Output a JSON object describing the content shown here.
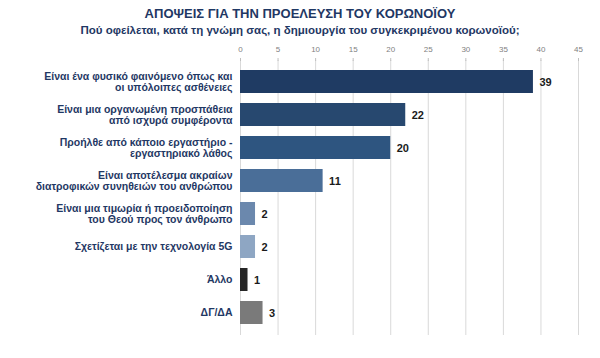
{
  "chart_data": {
    "type": "bar",
    "title": "ΑΠΟΨΕΙΣ ΓΙΑ ΤΗΝ ΠΡΟΕΛΕΥΣΗ ΤΟΥ ΚΟΡΩΝΟΪΟΥ",
    "subtitle": "Πού οφείλεται, κατά τη γνώμη σας, η δημιουργία του συγκεκριμένου κορωνοϊού;",
    "orientation": "horizontal",
    "categories": [
      "Είναι ένα φυσικό φαινόμενο όπως και οι υπόλοιπες ασθένειες",
      "Είναι μια οργανωμένη προσπάθεια από ισχυρά συμφέροντα",
      "Προήλθε από κάποιο εργαστήριο - εργαστηριακό λάθος",
      "Είναι αποτέλεσμα ακραίων διατροφικών συνηθειών του ανθρώπου",
      "Είναι μια τιμωρία ή προειδοποίηση του Θεού προς τον άνθρωπο",
      "Σχετίζεται με την τεχνολογία 5G",
      "Άλλο",
      "ΔΓ/ΔΑ"
    ],
    "values": [
      39,
      22,
      20,
      11,
      2,
      2,
      1,
      3
    ],
    "colors": [
      "#1f3b63",
      "#27486f",
      "#2e5580",
      "#4a6e98",
      "#6b88ad",
      "#8ea6c3",
      "#262626",
      "#7a7a7a"
    ],
    "xlim": [
      0,
      45
    ],
    "xticks": [
      0,
      5,
      10,
      15,
      20,
      25,
      30,
      35,
      40,
      45
    ],
    "grid": true,
    "data_labels": true
  }
}
